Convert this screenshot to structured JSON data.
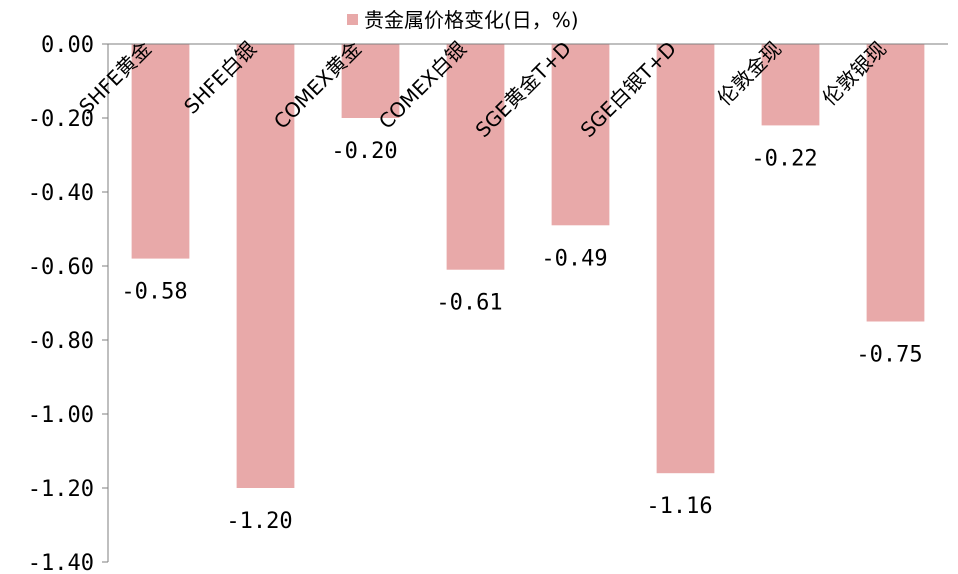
{
  "chart_data": {
    "type": "bar",
    "categories": [
      "SHFE黄金",
      "SHFE白银",
      "COMEX黄金",
      "COMEX白银",
      "SGE黄金T+D",
      "SGE白银T+D",
      "伦敦金现",
      "伦敦银现"
    ],
    "series": [
      {
        "name": "贵金属价格变化(日,%)",
        "values": [
          -0.58,
          -1.2,
          -0.2,
          -0.61,
          -0.49,
          -1.16,
          -0.22,
          -0.75
        ],
        "data_labels": [
          "-0.58",
          "-1.20",
          "-0.20",
          "-0.61",
          "-0.49",
          "-1.16",
          "-0.22",
          "-0.75"
        ],
        "color": "#e8a9a9"
      }
    ],
    "legend": {
      "text": "贵金属价格变化(日，%)",
      "position": "top"
    },
    "yticks": [
      "0.00",
      "-0.20",
      "-0.40",
      "-0.60",
      "-0.80",
      "-1.00",
      "-1.20",
      "-1.40"
    ],
    "ylim": [
      -1.4,
      0
    ],
    "grid": false,
    "axis_color": "#7f7f7f"
  }
}
